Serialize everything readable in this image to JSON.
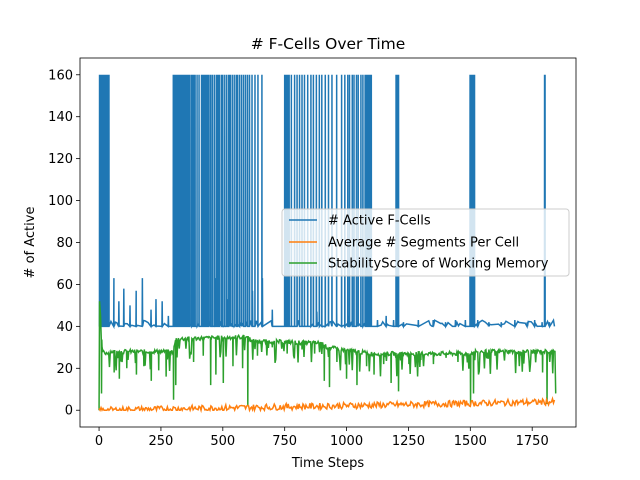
{
  "chart_data": {
    "type": "line",
    "title": "# F-Cells Over Time",
    "xlabel": "Time Steps",
    "ylabel": "# of Active",
    "xlim": [
      -77,
      1927
    ],
    "ylim": [
      -8,
      168
    ],
    "xticks": [
      0,
      250,
      500,
      750,
      1000,
      1250,
      1500,
      1750
    ],
    "yticks": [
      0,
      20,
      40,
      60,
      80,
      100,
      120,
      140,
      160
    ],
    "grid": false,
    "legend_position": "center-right",
    "series": [
      {
        "name": "# Active F-Cells",
        "color": "#1f77b4",
        "baseline": 40,
        "spikes_to_160_at": [
          2,
          6,
          10,
          14,
          18,
          22,
          26,
          30,
          36,
          40,
          300,
          303,
          306,
          309,
          312,
          315,
          318,
          321,
          324,
          327,
          330,
          333,
          336,
          339,
          342,
          346,
          350,
          355,
          360,
          365,
          372,
          378,
          384,
          388,
          396,
          404,
          414,
          420,
          426,
          432,
          438,
          444,
          451,
          458,
          466,
          474,
          480,
          486,
          494,
          500,
          508,
          516,
          524,
          530,
          538,
          546,
          554,
          560,
          568,
          576,
          584,
          592,
          600,
          608,
          618,
          630,
          642,
          658,
          750,
          756,
          762,
          768,
          777,
          790,
          800,
          810,
          820,
          830,
          843,
          856,
          866,
          878,
          890,
          900,
          914,
          927,
          941,
          960,
          980,
          993,
          1005,
          1012,
          1023,
          1030,
          1040,
          1047,
          1058,
          1066,
          1075,
          1079,
          1083,
          1086,
          1089,
          1092,
          1096,
          1100,
          1200,
          1204,
          1207,
          1210,
          1499,
          1502,
          1505,
          1508,
          1511,
          1514,
          1517,
          1800,
          1802
        ],
        "noise_peaks": [
          [
            20,
            58
          ],
          [
            35,
            52
          ],
          [
            60,
            63
          ],
          [
            80,
            52
          ],
          [
            100,
            58
          ],
          [
            125,
            50
          ],
          [
            150,
            57
          ],
          [
            175,
            63
          ],
          [
            210,
            48
          ],
          [
            230,
            53
          ],
          [
            255,
            52
          ],
          [
            280,
            45
          ],
          [
            350,
            55
          ],
          [
            420,
            57
          ],
          [
            470,
            63
          ],
          [
            520,
            53
          ],
          [
            560,
            50
          ],
          [
            620,
            57
          ],
          [
            660,
            63
          ],
          [
            700,
            48
          ],
          [
            830,
            50
          ],
          [
            880,
            47
          ],
          [
            960,
            50
          ],
          [
            1010,
            45
          ],
          [
            1080,
            43
          ],
          [
            1125,
            43
          ],
          [
            1160,
            45
          ],
          [
            1190,
            43
          ],
          [
            1230,
            42
          ],
          [
            1290,
            43
          ],
          [
            1350,
            43
          ],
          [
            1400,
            42
          ],
          [
            1440,
            43
          ],
          [
            1480,
            43
          ],
          [
            1530,
            43
          ],
          [
            1575,
            42
          ],
          [
            1625,
            42
          ],
          [
            1680,
            43
          ],
          [
            1730,
            42
          ],
          [
            1760,
            43
          ],
          [
            1790,
            42
          ],
          [
            1820,
            42
          ]
        ],
        "end_x": 1840
      },
      {
        "name": "Average # Segments Per Cell",
        "color": "#ff7f0e",
        "start": [
          0,
          0
        ],
        "end": [
          1840,
          4
        ],
        "noise_amplitude": 1.5
      },
      {
        "name": "StabilityScore of Working Memory",
        "color": "#2ca02c",
        "points": [
          [
            0,
            0
          ],
          [
            2,
            52
          ],
          [
            6,
            45
          ],
          [
            10,
            30
          ],
          [
            20,
            27
          ],
          [
            50,
            28
          ],
          [
            300,
            28
          ],
          [
            310,
            34
          ],
          [
            600,
            35
          ],
          [
            620,
            33
          ],
          [
            900,
            32
          ],
          [
            920,
            30
          ],
          [
            1100,
            27
          ],
          [
            1500,
            27
          ],
          [
            1520,
            28
          ],
          [
            1840,
            28
          ],
          [
            1845,
            8
          ]
        ],
        "dips": [
          [
            8,
            8
          ],
          [
            60,
            18
          ],
          [
            80,
            15
          ],
          [
            110,
            20
          ],
          [
            150,
            17
          ],
          [
            180,
            21
          ],
          [
            210,
            14
          ],
          [
            240,
            19
          ],
          [
            270,
            16
          ],
          [
            300,
            5
          ],
          [
            310,
            12
          ],
          [
            380,
            23
          ],
          [
            420,
            26
          ],
          [
            450,
            12
          ],
          [
            470,
            17
          ],
          [
            500,
            13
          ],
          [
            540,
            21
          ],
          [
            580,
            20
          ],
          [
            600,
            2
          ],
          [
            640,
            26
          ],
          [
            700,
            30
          ],
          [
            760,
            27
          ],
          [
            820,
            29
          ],
          [
            870,
            27
          ],
          [
            910,
            14
          ],
          [
            930,
            11
          ],
          [
            960,
            23
          ],
          [
            1000,
            15
          ],
          [
            1040,
            12
          ],
          [
            1080,
            21
          ],
          [
            1110,
            17
          ],
          [
            1150,
            22
          ],
          [
            1180,
            13
          ],
          [
            1210,
            9
          ],
          [
            1250,
            22
          ],
          [
            1300,
            24
          ],
          [
            1350,
            22
          ],
          [
            1400,
            25
          ],
          [
            1450,
            23
          ],
          [
            1500,
            3
          ],
          [
            1512,
            8
          ],
          [
            1600,
            26
          ],
          [
            1700,
            26
          ],
          [
            1790,
            18
          ],
          [
            1810,
            3
          ]
        ],
        "end_x": 1845
      }
    ]
  }
}
